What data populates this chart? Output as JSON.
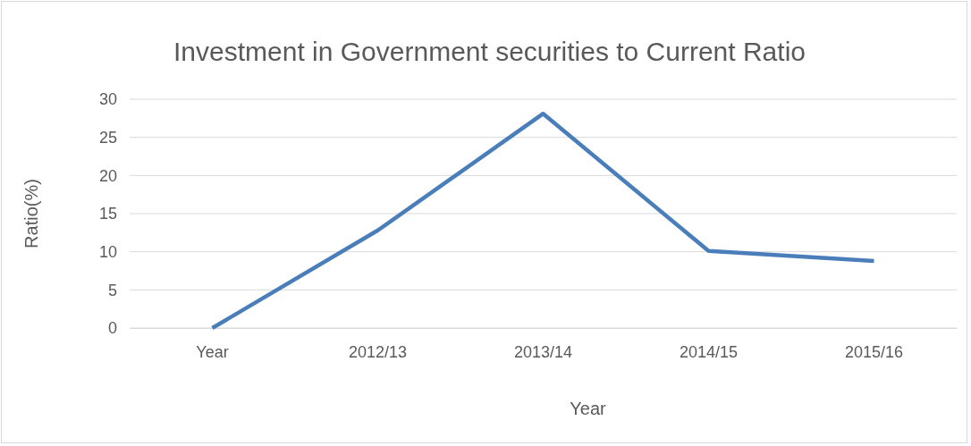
{
  "chart_data": {
    "type": "line",
    "title": "Investment in Government securities to Current Ratio",
    "xlabel": "Year",
    "ylabel": "Ratio(%)",
    "categories": [
      "Year",
      "2012/13",
      "2013/14",
      "2014/15",
      "2015/16"
    ],
    "series": [
      {
        "color": "#4a7ebb",
        "values": [
          0,
          12.8,
          28.1,
          10.1,
          8.8
        ]
      }
    ],
    "ylim": [
      0,
      30
    ],
    "yticks": [
      0,
      5,
      10,
      15,
      20,
      25,
      30
    ],
    "grid": "y",
    "marker": "none",
    "line_style": "solid"
  }
}
